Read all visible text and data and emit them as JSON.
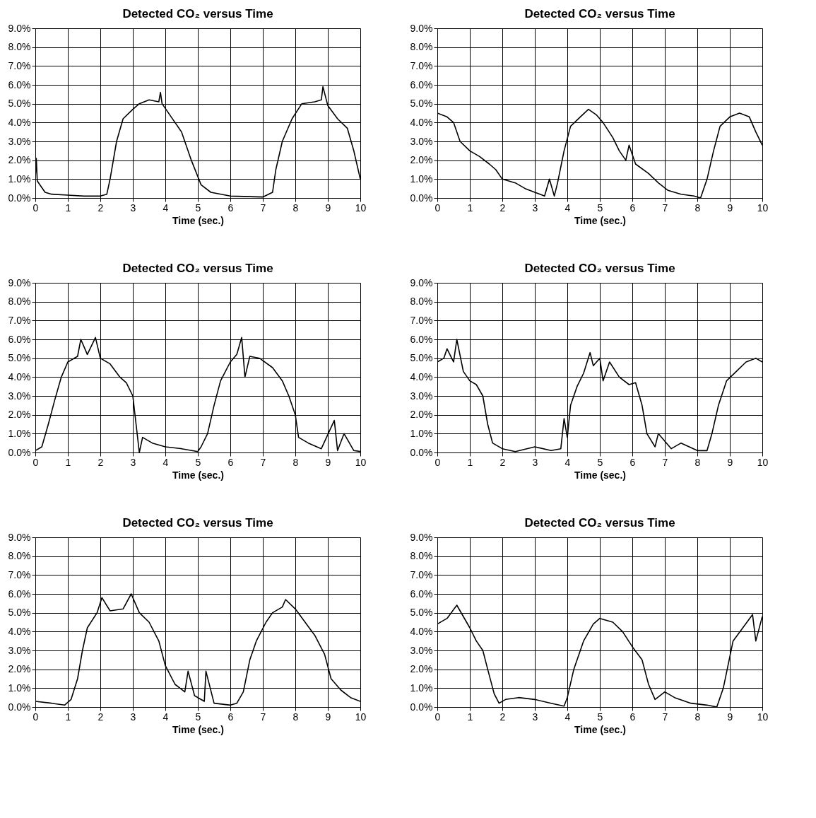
{
  "chart_data": [
    {
      "type": "line",
      "title": "Detected CO₂ versus Time",
      "xlabel": "Time (sec.)",
      "color": "#000000",
      "grid": true,
      "xlim": [
        0,
        10
      ],
      "ylim": [
        0,
        9
      ],
      "xticks": [
        0,
        1,
        2,
        3,
        4,
        5,
        6,
        7,
        8,
        9,
        10
      ],
      "yticks": [
        {
          "value": 0,
          "label": "0.0%"
        },
        {
          "value": 1,
          "label": "1.0%"
        },
        {
          "value": 2,
          "label": "2.0%"
        },
        {
          "value": 3,
          "label": "3.0%"
        },
        {
          "value": 4,
          "label": "4.0%"
        },
        {
          "value": 5,
          "label": "5.0%"
        },
        {
          "value": 6,
          "label": "6.0%"
        },
        {
          "value": 7,
          "label": "7.0%"
        },
        {
          "value": 8,
          "label": "8.0%"
        },
        {
          "value": 9,
          "label": "9.0%"
        }
      ],
      "x": [
        0,
        0.03,
        0.06,
        0.3,
        0.5,
        1,
        1.5,
        2,
        2.2,
        2.3,
        2.5,
        2.7,
        3,
        3.2,
        3.5,
        3.8,
        3.85,
        3.9,
        4.3,
        4.5,
        4.8,
        5.1,
        5.4,
        6,
        7,
        7.3,
        7.4,
        7.6,
        7.9,
        8.2,
        8.6,
        8.8,
        8.85,
        9,
        9.3,
        9.6,
        9.8,
        10
      ],
      "values": [
        1.0,
        2.1,
        0.9,
        0.3,
        0.2,
        0.15,
        0.1,
        0.1,
        0.2,
        1.0,
        3.0,
        4.2,
        4.7,
        5.0,
        5.2,
        5.1,
        5.6,
        5.0,
        4.0,
        3.5,
        2.0,
        0.7,
        0.3,
        0.1,
        0.05,
        0.3,
        1.5,
        3.0,
        4.2,
        5.0,
        5.1,
        5.2,
        5.9,
        4.9,
        4.2,
        3.7,
        2.5,
        1.0
      ]
    },
    {
      "type": "line",
      "title": "Detected CO₂ versus Time",
      "xlabel": "Time (sec.)",
      "color": "#000000",
      "grid": true,
      "xlim": [
        0,
        10
      ],
      "ylim": [
        0,
        9
      ],
      "xticks": [
        0,
        1,
        2,
        3,
        4,
        5,
        6,
        7,
        8,
        9,
        10
      ],
      "yticks": [
        {
          "value": 0,
          "label": "0.0%"
        },
        {
          "value": 1,
          "label": "1.0%"
        },
        {
          "value": 2,
          "label": "2.0%"
        },
        {
          "value": 3,
          "label": "3.0%"
        },
        {
          "value": 4,
          "label": "4.0%"
        },
        {
          "value": 5,
          "label": "5.0%"
        },
        {
          "value": 6,
          "label": "6.0%"
        },
        {
          "value": 7,
          "label": "7.0%"
        },
        {
          "value": 8,
          "label": "8.0%"
        },
        {
          "value": 9,
          "label": "9.0%"
        }
      ],
      "x": [
        0,
        0.3,
        0.5,
        0.7,
        1.0,
        1.3,
        1.6,
        1.8,
        2.0,
        2.4,
        2.7,
        3.0,
        3.3,
        3.45,
        3.6,
        3.7,
        3.9,
        4.1,
        4.4,
        4.65,
        4.9,
        5.1,
        5.4,
        5.6,
        5.8,
        5.9,
        6.1,
        6.5,
        6.8,
        7.1,
        7.5,
        7.9,
        8.1,
        8.3,
        8.5,
        8.7,
        9.0,
        9.3,
        9.6,
        9.8,
        10
      ],
      "values": [
        4.5,
        4.3,
        4.0,
        3.0,
        2.5,
        2.2,
        1.8,
        1.5,
        1.0,
        0.8,
        0.5,
        0.3,
        0.1,
        1.0,
        0.1,
        0.8,
        2.5,
        3.8,
        4.3,
        4.7,
        4.4,
        4.0,
        3.2,
        2.5,
        2.0,
        2.8,
        1.8,
        1.3,
        0.8,
        0.4,
        0.2,
        0.1,
        0.0,
        1.0,
        2.5,
        3.8,
        4.3,
        4.5,
        4.3,
        3.5,
        2.8
      ]
    },
    {
      "type": "line",
      "title": "Detected CO₂ versus Time",
      "xlabel": "Time (sec.)",
      "color": "#000000",
      "grid": true,
      "xlim": [
        0,
        10
      ],
      "ylim": [
        0,
        9
      ],
      "xticks": [
        0,
        1,
        2,
        3,
        4,
        5,
        6,
        7,
        8,
        9,
        10
      ],
      "yticks": [
        {
          "value": 0,
          "label": "0.0%"
        },
        {
          "value": 1,
          "label": "1.0%"
        },
        {
          "value": 2,
          "label": "2.0%"
        },
        {
          "value": 3,
          "label": "3.0%"
        },
        {
          "value": 4,
          "label": "4.0%"
        },
        {
          "value": 5,
          "label": "5.0%"
        },
        {
          "value": 6,
          "label": "6.0%"
        },
        {
          "value": 7,
          "label": "7.0%"
        },
        {
          "value": 8,
          "label": "8.0%"
        },
        {
          "value": 9,
          "label": "9.0%"
        }
      ],
      "x": [
        0,
        0.2,
        0.4,
        0.6,
        0.8,
        1.0,
        1.3,
        1.4,
        1.6,
        1.85,
        2.0,
        2.3,
        2.6,
        2.8,
        3.0,
        3.1,
        3.2,
        3.3,
        3.6,
        4.0,
        4.5,
        5.0,
        5.1,
        5.3,
        5.5,
        5.7,
        6.0,
        6.2,
        6.35,
        6.45,
        6.6,
        6.9,
        7.3,
        7.6,
        7.8,
        8.0,
        8.1,
        8.4,
        8.8,
        9.2,
        9.3,
        9.5,
        9.8,
        10
      ],
      "values": [
        0.1,
        0.3,
        1.5,
        2.8,
        4.0,
        4.8,
        5.1,
        6.0,
        5.2,
        6.1,
        5.0,
        4.7,
        4.0,
        3.7,
        3.0,
        1.5,
        0.0,
        0.8,
        0.5,
        0.3,
        0.2,
        0.05,
        0.3,
        1.0,
        2.5,
        3.8,
        4.8,
        5.2,
        6.1,
        4.0,
        5.1,
        5.0,
        4.5,
        3.8,
        3.0,
        2.0,
        0.8,
        0.5,
        0.2,
        1.7,
        0.1,
        1.0,
        0.1,
        0.05
      ]
    },
    {
      "type": "line",
      "title": "Detected CO₂ versus Time",
      "xlabel": "Time (sec.)",
      "color": "#000000",
      "grid": true,
      "xlim": [
        0,
        10
      ],
      "ylim": [
        0,
        9
      ],
      "xticks": [
        0,
        1,
        2,
        3,
        4,
        5,
        6,
        7,
        8,
        9,
        10
      ],
      "yticks": [
        {
          "value": 0,
          "label": "0.0%"
        },
        {
          "value": 1,
          "label": "1.0%"
        },
        {
          "value": 2,
          "label": "2.0%"
        },
        {
          "value": 3,
          "label": "3.0%"
        },
        {
          "value": 4,
          "label": "4.0%"
        },
        {
          "value": 5,
          "label": "5.0%"
        },
        {
          "value": 6,
          "label": "6.0%"
        },
        {
          "value": 7,
          "label": "7.0%"
        },
        {
          "value": 8,
          "label": "8.0%"
        },
        {
          "value": 9,
          "label": "9.0%"
        }
      ],
      "x": [
        0,
        0.2,
        0.3,
        0.5,
        0.6,
        0.8,
        1.0,
        1.2,
        1.4,
        1.55,
        1.7,
        2.0,
        2.4,
        3.0,
        3.5,
        3.8,
        3.9,
        4.0,
        4.1,
        4.3,
        4.5,
        4.7,
        4.8,
        5.0,
        5.1,
        5.3,
        5.6,
        5.9,
        6.1,
        6.3,
        6.45,
        6.7,
        6.8,
        7.2,
        7.5,
        8.0,
        8.3,
        8.45,
        8.65,
        8.9,
        9.2,
        9.5,
        9.8,
        10
      ],
      "values": [
        4.8,
        5.0,
        5.5,
        4.8,
        6.0,
        4.3,
        3.8,
        3.6,
        3.0,
        1.5,
        0.5,
        0.2,
        0.05,
        0.3,
        0.1,
        0.2,
        1.8,
        0.8,
        2.5,
        3.5,
        4.2,
        5.3,
        4.6,
        5.0,
        3.8,
        4.8,
        4.0,
        3.6,
        3.7,
        2.5,
        1.0,
        0.3,
        1.0,
        0.2,
        0.5,
        0.1,
        0.1,
        1.0,
        2.5,
        3.8,
        4.3,
        4.8,
        5.0,
        4.8
      ]
    },
    {
      "type": "line",
      "title": "Detected CO₂ versus Time",
      "xlabel": "Time (sec.)",
      "color": "#000000",
      "grid": true,
      "xlim": [
        0,
        10
      ],
      "ylim": [
        0,
        9
      ],
      "xticks": [
        0,
        1,
        2,
        3,
        4,
        5,
        6,
        7,
        8,
        9,
        10
      ],
      "yticks": [
        {
          "value": 0,
          "label": "0.0%"
        },
        {
          "value": 1,
          "label": "1.0%"
        },
        {
          "value": 2,
          "label": "2.0%"
        },
        {
          "value": 3,
          "label": "3.0%"
        },
        {
          "value": 4,
          "label": "4.0%"
        },
        {
          "value": 5,
          "label": "5.0%"
        },
        {
          "value": 6,
          "label": "6.0%"
        },
        {
          "value": 7,
          "label": "7.0%"
        },
        {
          "value": 8,
          "label": "8.0%"
        },
        {
          "value": 9,
          "label": "9.0%"
        }
      ],
      "x": [
        0,
        0.5,
        0.9,
        1.1,
        1.3,
        1.45,
        1.6,
        1.9,
        2.05,
        2.3,
        2.7,
        2.95,
        3.2,
        3.5,
        3.8,
        4.0,
        4.3,
        4.6,
        4.7,
        4.9,
        5.2,
        5.25,
        5.5,
        6.0,
        6.2,
        6.4,
        6.6,
        6.8,
        7.1,
        7.3,
        7.6,
        7.7,
        8.0,
        8.3,
        8.6,
        8.9,
        9.1,
        9.4,
        9.7,
        10
      ],
      "values": [
        0.3,
        0.2,
        0.1,
        0.4,
        1.5,
        3.0,
        4.2,
        5.0,
        5.8,
        5.1,
        5.2,
        6.0,
        5.0,
        4.5,
        3.5,
        2.2,
        1.2,
        0.8,
        1.9,
        0.6,
        0.3,
        1.9,
        0.2,
        0.1,
        0.2,
        0.8,
        2.5,
        3.5,
        4.5,
        5.0,
        5.3,
        5.7,
        5.2,
        4.5,
        3.8,
        2.8,
        1.5,
        0.9,
        0.5,
        0.3
      ]
    },
    {
      "type": "line",
      "title": "Detected CO₂ versus Time",
      "xlabel": "Time (sec.)",
      "color": "#000000",
      "grid": true,
      "xlim": [
        0,
        10
      ],
      "ylim": [
        0,
        9
      ],
      "xticks": [
        0,
        1,
        2,
        3,
        4,
        5,
        6,
        7,
        8,
        9,
        10
      ],
      "yticks": [
        {
          "value": 0,
          "label": "0.0%"
        },
        {
          "value": 1,
          "label": "1.0%"
        },
        {
          "value": 2,
          "label": "2.0%"
        },
        {
          "value": 3,
          "label": "3.0%"
        },
        {
          "value": 4,
          "label": "4.0%"
        },
        {
          "value": 5,
          "label": "5.0%"
        },
        {
          "value": 6,
          "label": "6.0%"
        },
        {
          "value": 7,
          "label": "7.0%"
        },
        {
          "value": 8,
          "label": "8.0%"
        },
        {
          "value": 9,
          "label": "9.0%"
        }
      ],
      "x": [
        0,
        0.3,
        0.6,
        0.8,
        1.0,
        1.2,
        1.4,
        1.55,
        1.75,
        1.9,
        2.1,
        2.5,
        3.0,
        3.5,
        3.9,
        4.0,
        4.2,
        4.5,
        4.8,
        5.0,
        5.4,
        5.7,
        6.0,
        6.3,
        6.5,
        6.7,
        7.0,
        7.3,
        7.8,
        8.3,
        8.6,
        8.8,
        9.1,
        9.4,
        9.7,
        9.8,
        10
      ],
      "values": [
        4.4,
        4.7,
        5.4,
        4.8,
        4.2,
        3.5,
        3.0,
        2.0,
        0.7,
        0.2,
        0.4,
        0.5,
        0.4,
        0.2,
        0.05,
        0.5,
        2.0,
        3.5,
        4.4,
        4.7,
        4.5,
        4.0,
        3.2,
        2.5,
        1.2,
        0.4,
        0.8,
        0.5,
        0.2,
        0.1,
        0.0,
        1.0,
        3.5,
        4.2,
        4.9,
        3.5,
        4.8
      ]
    }
  ]
}
